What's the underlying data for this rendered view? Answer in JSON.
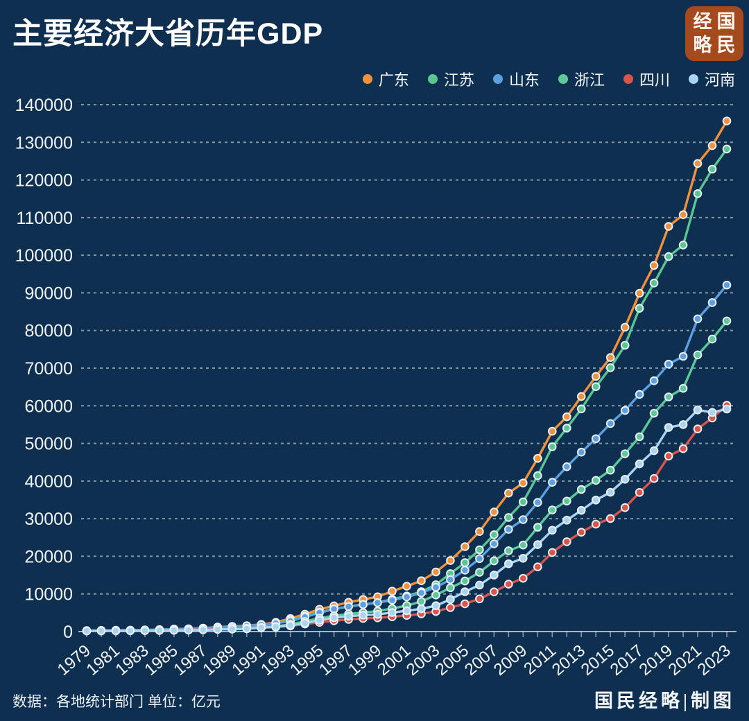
{
  "header": {
    "title": "主要经济大省历年GDP"
  },
  "logo": {
    "chars": [
      "经",
      "国",
      "略",
      "民"
    ],
    "bg_color": "#A5491F"
  },
  "footer": {
    "source": "数据：各地统计部门 单位：亿元",
    "credit": "国民经略|制图"
  },
  "colors": {
    "background": "#0E2F50",
    "text": "#FFFFFF",
    "grid": "rgba(255,255,255,0.5)",
    "axis": "rgba(255,255,255,0.65)",
    "dot_border": "#EAF0F5"
  },
  "chart_data": {
    "type": "line",
    "title": "主要经济大省历年GDP",
    "unit": "亿元",
    "x": [
      1979,
      1980,
      1981,
      1982,
      1983,
      1984,
      1985,
      1986,
      1987,
      1988,
      1989,
      1990,
      1991,
      1992,
      1993,
      1994,
      1995,
      1996,
      1997,
      1998,
      1999,
      2000,
      2001,
      2002,
      2003,
      2004,
      2005,
      2006,
      2007,
      2008,
      2009,
      2010,
      2011,
      2012,
      2013,
      2014,
      2015,
      2016,
      2017,
      2018,
      2019,
      2020,
      2021,
      2022,
      2023
    ],
    "x_label_step": 2,
    "ylim": [
      0,
      140000
    ],
    "y_tick_step": 10000,
    "grid": "dotted-horizontal",
    "legend_position": "top-right",
    "series": [
      {
        "name": "广东",
        "key": "guangdong",
        "color": "#F0913C",
        "values": [
          209,
          250,
          290,
          340,
          369,
          459,
          577,
          668,
          847,
          1155,
          1381,
          1559,
          1893,
          2448,
          3469,
          4619,
          5933,
          6835,
          7775,
          8531,
          9251,
          10741,
          12039,
          13502,
          15845,
          18865,
          22557,
          26588,
          31777,
          36797,
          39483,
          46013,
          53210,
          57068,
          62475,
          67810,
          72813,
          80855,
          89879,
          97278,
          107671,
          110761,
          124370,
          129119,
          135673
        ]
      },
      {
        "name": "江苏",
        "key": "jiangsu",
        "color": "#57C690",
        "values": [
          249,
          320,
          351,
          390,
          438,
          520,
          652,
          745,
          922,
          1209,
          1322,
          1417,
          1601,
          2136,
          2998,
          4057,
          5155,
          6004,
          6680,
          7200,
          7698,
          8583,
          9457,
          10607,
          12461,
          15403,
          18306,
          21742,
          25741,
          30313,
          34457,
          41425,
          49110,
          54058,
          59162,
          65088,
          70116,
          76086,
          85901,
          92595,
          99632,
          102719,
          116364,
          122876,
          128222
        ]
      },
      {
        "name": "山东",
        "key": "shandong",
        "color": "#5CA0DF",
        "values": [
          224,
          292,
          324,
          368,
          420,
          497,
          681,
          742,
          892,
          1118,
          1293,
          1511,
          1811,
          2197,
          2770,
          3872,
          5002,
          5960,
          6650,
          7162,
          7662,
          8340,
          9195,
          10276,
          11769,
          13804,
          16313,
          19387,
          23320,
          27148,
          29723,
          34320,
          39653,
          43800,
          47680,
          51253,
          55288,
          58763,
          63012,
          66649,
          71068,
          73129,
          83096,
          87435,
          92069
        ]
      },
      {
        "name": "浙江",
        "key": "zhejiang",
        "color": "#5BC99A",
        "values": [
          157,
          180,
          205,
          234,
          257,
          323,
          429,
          502,
          617,
          770,
          849,
          904,
          1089,
          1375,
          1925,
          2689,
          3558,
          4188,
          4686,
          5052,
          5444,
          6141,
          6898,
          8003,
          9705,
          11648,
          13438,
          15742,
          18780,
          21487,
          22990,
          27722,
          32319,
          34665,
          37757,
          40173,
          42886,
          47251,
          51768,
          58003,
          62352,
          64613,
          73516,
          77715,
          82553
        ]
      },
      {
        "name": "四川",
        "key": "sichuan",
        "color": "#DB5449",
        "values": [
          184,
          229,
          243,
          277,
          318,
          380,
          421,
          467,
          556,
          698,
          800,
          891,
          1016,
          1177,
          1486,
          2001,
          2443,
          2872,
          3241,
          3474,
          3649,
          3928,
          4293,
          4725,
          5333,
          6380,
          7385,
          8690,
          10562,
          12601,
          14151,
          17185,
          21027,
          23873,
          26392,
          28537,
          30053,
          32935,
          36980,
          40678,
          46616,
          48599,
          53851,
          56750,
          60133
        ]
      },
      {
        "name": "河南",
        "key": "henan",
        "color": "#A6D4F2",
        "values": [
          163,
          191,
          203,
          226,
          246,
          290,
          329,
          380,
          448,
          563,
          650,
          735,
          1046,
          1280,
          1660,
          2217,
          3003,
          3661,
          4079,
          4357,
          4576,
          5053,
          5533,
          6035,
          6868,
          8554,
          10587,
          12363,
          15012,
          18019,
          19480,
          23092,
          26931,
          29599,
          32191,
          34938,
          37002,
          40472,
          44553,
          48056,
          54259,
          54997,
          58887,
          58220,
          59132
        ]
      }
    ]
  }
}
